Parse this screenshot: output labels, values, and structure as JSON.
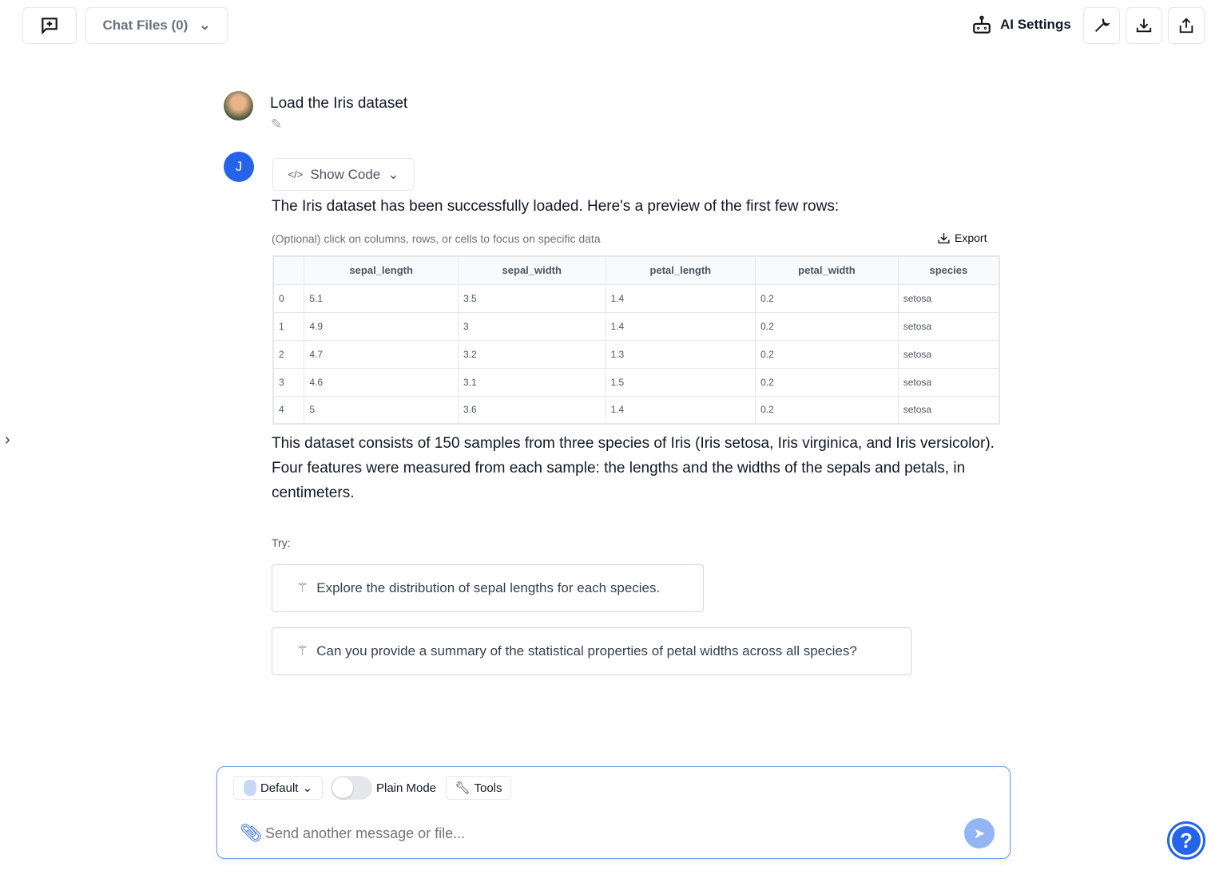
{
  "header": {
    "chat_files_label": "Chat Files (0)",
    "ai_settings_label": "AI Settings"
  },
  "user_message": {
    "text": "Load the Iris dataset"
  },
  "assistant": {
    "avatar_letter": "J",
    "show_code_label": "Show Code",
    "intro": "The Iris dataset has been successfully loaded. Here's a preview of the first few rows:",
    "hint": "(Optional) click on columns, rows, or cells to focus on specific data",
    "export_label": "Export",
    "table": {
      "columns": [
        "",
        "sepal_length",
        "sepal_width",
        "petal_length",
        "petal_width",
        "species"
      ],
      "rows": [
        [
          "0",
          "5.1",
          "3.5",
          "1.4",
          "0.2",
          "setosa"
        ],
        [
          "1",
          "4.9",
          "3",
          "1.4",
          "0.2",
          "setosa"
        ],
        [
          "2",
          "4.7",
          "3.2",
          "1.3",
          "0.2",
          "setosa"
        ],
        [
          "3",
          "4.6",
          "3.1",
          "1.5",
          "0.2",
          "setosa"
        ],
        [
          "4",
          "5",
          "3.6",
          "1.4",
          "0.2",
          "setosa"
        ]
      ]
    },
    "description": "This dataset consists of 150 samples from three species of Iris (Iris setosa, Iris virginica, and Iris versicolor). Four features were measured from each sample: the lengths and the widths of the sepals and petals, in centimeters.",
    "try_label": "Try:",
    "suggestions": [
      "Explore the distribution of sepal lengths for each species.",
      "Can you provide a summary of the statistical properties of petal widths across all species?"
    ]
  },
  "composer": {
    "model_label": "Default",
    "plain_mode_label": "Plain Mode",
    "plain_mode_on": false,
    "tools_label": "Tools",
    "placeholder": "Send another message or file..."
  },
  "colors": {
    "accent": "#2563eb",
    "send": "#93b4f5"
  }
}
